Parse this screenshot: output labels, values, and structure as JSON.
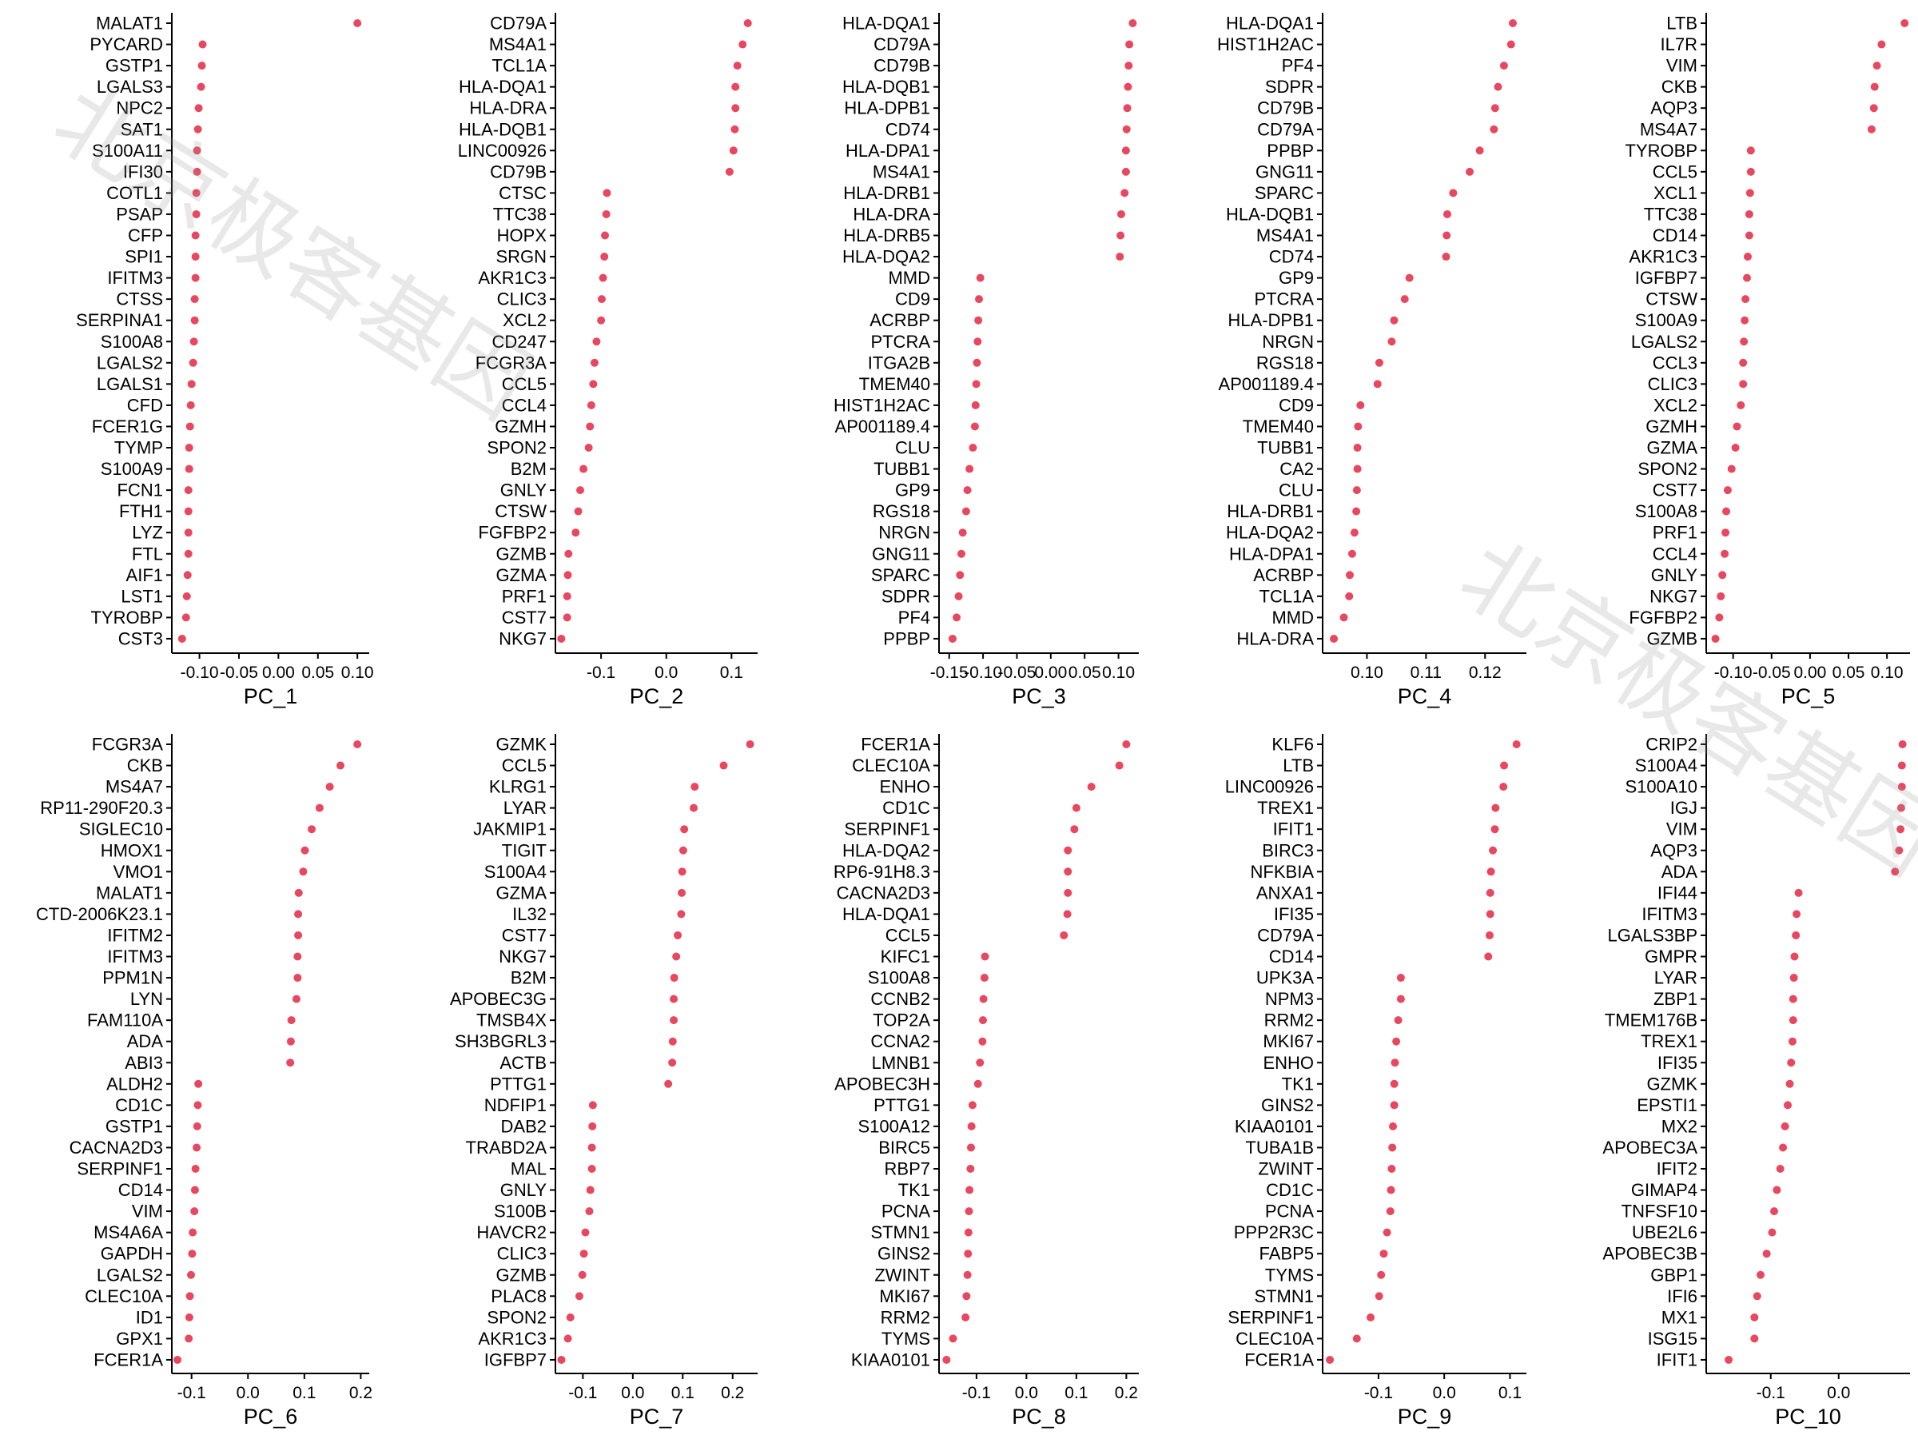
{
  "watermark": "北京极客基因",
  "colors": {
    "point": "#e8485f",
    "axis": "#000000"
  },
  "chart_data": [
    {
      "type": "scatter",
      "xlabel": "PC_1",
      "xlim": [
        -0.135,
        0.115
      ],
      "xticks": [
        -0.1,
        -0.05,
        0.0,
        0.05,
        0.1
      ],
      "xtick_labels": [
        "-0.10",
        "-0.05",
        "0.00",
        "0.05",
        "0.10"
      ],
      "genes": [
        "MALAT1",
        "PYCARD",
        "GSTP1",
        "LGALS3",
        "NPC2",
        "SAT1",
        "S100A11",
        "IFI30",
        "COTL1",
        "PSAP",
        "CFP",
        "SPI1",
        "IFITM3",
        "CTSS",
        "SERPINA1",
        "S100A8",
        "LGALS2",
        "LGALS1",
        "CFD",
        "FCER1G",
        "TYMP",
        "S100A9",
        "FCN1",
        "FTH1",
        "LYZ",
        "FTL",
        "AIF1",
        "LST1",
        "TYROBP",
        "CST3"
      ],
      "values": [
        0.1,
        -0.096,
        -0.097,
        -0.098,
        -0.101,
        -0.102,
        -0.103,
        -0.103,
        -0.104,
        -0.104,
        -0.105,
        -0.105,
        -0.105,
        -0.106,
        -0.106,
        -0.107,
        -0.108,
        -0.11,
        -0.111,
        -0.112,
        -0.113,
        -0.113,
        -0.114,
        -0.114,
        -0.114,
        -0.114,
        -0.115,
        -0.116,
        -0.117,
        -0.122
      ]
    },
    {
      "type": "scatter",
      "xlabel": "PC_2",
      "xlim": [
        -0.17,
        0.14
      ],
      "xticks": [
        -0.1,
        0.0,
        0.1
      ],
      "xtick_labels": [
        "-0.1",
        "0.0",
        "0.1"
      ],
      "genes": [
        "CD79A",
        "MS4A1",
        "TCL1A",
        "HLA-DQA1",
        "HLA-DRA",
        "HLA-DQB1",
        "LINC00926",
        "CD79B",
        "CTSC",
        "TTC38",
        "HOPX",
        "SRGN",
        "AKR1C3",
        "CLIC3",
        "XCL2",
        "CD247",
        "FCGR3A",
        "CCL5",
        "CCL4",
        "GZMH",
        "SPON2",
        "B2M",
        "GNLY",
        "CTSW",
        "FGFBP2",
        "GZMB",
        "GZMA",
        "PRF1",
        "CST7",
        "NKG7"
      ],
      "values": [
        0.125,
        0.117,
        0.109,
        0.106,
        0.106,
        0.105,
        0.103,
        0.097,
        -0.091,
        -0.092,
        -0.094,
        -0.095,
        -0.097,
        -0.099,
        -0.1,
        -0.107,
        -0.11,
        -0.112,
        -0.115,
        -0.117,
        -0.119,
        -0.127,
        -0.132,
        -0.135,
        -0.139,
        -0.15,
        -0.151,
        -0.152,
        -0.152,
        -0.161
      ]
    },
    {
      "type": "scatter",
      "xlabel": "PC_3",
      "xlim": [
        -0.165,
        0.13
      ],
      "xticks": [
        -0.15,
        -0.1,
        -0.05,
        0.0,
        0.05,
        0.1
      ],
      "xtick_labels": [
        "-0.15",
        "-0.10",
        "-0.05",
        "0.00",
        "0.05",
        "0.10"
      ],
      "genes": [
        "HLA-DQA1",
        "CD79A",
        "CD79B",
        "HLA-DQB1",
        "HLA-DPB1",
        "CD74",
        "HLA-DPA1",
        "MS4A1",
        "HLA-DRB1",
        "HLA-DRA",
        "HLA-DRB5",
        "HLA-DQA2",
        "MMD",
        "CD9",
        "ACRBP",
        "PTCRA",
        "ITGA2B",
        "TMEM40",
        "HIST1H2AC",
        "AP001189.4",
        "CLU",
        "TUBB1",
        "GP9",
        "RGS18",
        "NRGN",
        "GNG11",
        "SPARC",
        "SDPR",
        "PF4",
        "PPBP"
      ],
      "values": [
        0.121,
        0.116,
        0.115,
        0.114,
        0.113,
        0.112,
        0.111,
        0.111,
        0.109,
        0.104,
        0.103,
        0.102,
        -0.104,
        -0.106,
        -0.107,
        -0.108,
        -0.109,
        -0.11,
        -0.111,
        -0.112,
        -0.115,
        -0.12,
        -0.123,
        -0.125,
        -0.13,
        -0.132,
        -0.134,
        -0.136,
        -0.139,
        -0.145
      ]
    },
    {
      "type": "scatter",
      "xlabel": "PC_4",
      "xlim": [
        0.0925,
        0.127
      ],
      "xticks": [
        0.1,
        0.11,
        0.12
      ],
      "xtick_labels": [
        "0.10",
        "0.11",
        "0.12"
      ],
      "genes": [
        "HLA-DQA1",
        "HIST1H2AC",
        "PF4",
        "SDPR",
        "CD79B",
        "CD79A",
        "PPBP",
        "GNG11",
        "SPARC",
        "HLA-DQB1",
        "MS4A1",
        "CD74",
        "GP9",
        "PTCRA",
        "HLA-DPB1",
        "NRGN",
        "RGS18",
        "AP001189.4",
        "CD9",
        "TMEM40",
        "TUBB1",
        "CA2",
        "CLU",
        "HLA-DRB1",
        "HLA-DQA2",
        "HLA-DPA1",
        "ACRBP",
        "TCL1A",
        "MMD",
        "HLA-DRA"
      ],
      "values": [
        0.1247,
        0.1244,
        0.1232,
        0.1222,
        0.1217,
        0.1215,
        0.1191,
        0.1174,
        0.1146,
        0.1136,
        0.1135,
        0.1134,
        0.1072,
        0.1064,
        0.1046,
        0.1042,
        0.1021,
        0.1018,
        0.0989,
        0.0985,
        0.0984,
        0.0984,
        0.0983,
        0.0982,
        0.0979,
        0.0975,
        0.0971,
        0.097,
        0.0961,
        0.0944
      ]
    },
    {
      "type": "scatter",
      "xlabel": "PC_5",
      "xlim": [
        -0.135,
        0.13
      ],
      "xticks": [
        -0.1,
        -0.05,
        0.0,
        0.05,
        0.1
      ],
      "xtick_labels": [
        "-0.10",
        "-0.05",
        "0.00",
        "0.05",
        "0.10"
      ],
      "genes": [
        "LTB",
        "IL7R",
        "VIM",
        "CKB",
        "AQP3",
        "MS4A7",
        "TYROBP",
        "CCL5",
        "XCL1",
        "TTC38",
        "CD14",
        "AKR1C3",
        "IGFBP7",
        "CTSW",
        "S100A9",
        "LGALS2",
        "CCL3",
        "CLIC3",
        "XCL2",
        "GZMH",
        "GZMA",
        "SPON2",
        "CST7",
        "S100A8",
        "PRF1",
        "CCL4",
        "GNLY",
        "NKG7",
        "FGFBP2",
        "GZMB"
      ],
      "values": [
        0.123,
        0.093,
        0.087,
        0.084,
        0.083,
        0.08,
        -0.077,
        -0.077,
        -0.078,
        -0.079,
        -0.079,
        -0.081,
        -0.082,
        -0.084,
        -0.085,
        -0.086,
        -0.087,
        -0.087,
        -0.09,
        -0.095,
        -0.097,
        -0.102,
        -0.107,
        -0.109,
        -0.11,
        -0.111,
        -0.114,
        -0.116,
        -0.118,
        -0.123
      ]
    },
    {
      "type": "scatter",
      "xlabel": "PC_6",
      "xlim": [
        -0.135,
        0.215
      ],
      "xticks": [
        -0.1,
        0.0,
        0.1,
        0.2
      ],
      "xtick_labels": [
        "-0.1",
        "0.0",
        "0.1",
        "0.2"
      ],
      "genes": [
        "FCGR3A",
        "CKB",
        "MS4A7",
        "RP11-290F20.3",
        "SIGLEC10",
        "HMOX1",
        "VMO1",
        "MALAT1",
        "CTD-2006K23.1",
        "IFITM2",
        "IFITM3",
        "PPM1N",
        "LYN",
        "FAM110A",
        "ADA",
        "ABI3",
        "ALDH2",
        "CD1C",
        "GSTP1",
        "CACNA2D3",
        "SERPINF1",
        "CD14",
        "VIM",
        "MS4A6A",
        "GAPDH",
        "LGALS2",
        "CLEC10A",
        "ID1",
        "GPX1",
        "FCER1A"
      ],
      "values": [
        0.194,
        0.164,
        0.145,
        0.127,
        0.113,
        0.101,
        0.098,
        0.09,
        0.089,
        0.089,
        0.088,
        0.088,
        0.086,
        0.077,
        0.076,
        0.075,
        -0.088,
        -0.089,
        -0.09,
        -0.091,
        -0.093,
        -0.094,
        -0.095,
        -0.098,
        -0.099,
        -0.101,
        -0.103,
        -0.104,
        -0.105,
        -0.125
      ]
    },
    {
      "type": "scatter",
      "xlabel": "PC_7",
      "xlim": [
        -0.155,
        0.25
      ],
      "xticks": [
        -0.1,
        0.0,
        0.1,
        0.2
      ],
      "xtick_labels": [
        "-0.1",
        "0.0",
        "0.1",
        "0.2"
      ],
      "genes": [
        "GZMK",
        "CCL5",
        "KLRG1",
        "LYAR",
        "JAKMIP1",
        "TIGIT",
        "S100A4",
        "GZMA",
        "IL32",
        "CST7",
        "NKG7",
        "B2M",
        "APOBEC3G",
        "TMSB4X",
        "SH3BGRL3",
        "ACTB",
        "PTTG1",
        "NDFIP1",
        "DAB2",
        "TRABD2A",
        "MAL",
        "GNLY",
        "S100B",
        "HAVCR2",
        "CLIC3",
        "GZMB",
        "PLAC8",
        "SPON2",
        "AKR1C3",
        "IGFBP7"
      ],
      "values": [
        0.235,
        0.182,
        0.124,
        0.122,
        0.103,
        0.101,
        0.099,
        0.098,
        0.097,
        0.09,
        0.087,
        0.083,
        0.082,
        0.082,
        0.08,
        0.079,
        0.071,
        -0.08,
        -0.081,
        -0.082,
        -0.082,
        -0.085,
        -0.087,
        -0.095,
        -0.098,
        -0.101,
        -0.107,
        -0.125,
        -0.13,
        -0.143
      ]
    },
    {
      "type": "scatter",
      "xlabel": "PC_8",
      "xlim": [
        -0.175,
        0.225
      ],
      "xticks": [
        -0.1,
        0.0,
        0.1,
        0.2
      ],
      "xtick_labels": [
        "-0.1",
        "0.0",
        "0.1",
        "0.2"
      ],
      "genes": [
        "FCER1A",
        "CLEC10A",
        "ENHO",
        "CD1C",
        "SERPINF1",
        "HLA-DQA2",
        "RP6-91H8.3",
        "CACNA2D3",
        "HLA-DQA1",
        "CCL5",
        "KIFC1",
        "S100A8",
        "CCNB2",
        "TOP2A",
        "CCNA2",
        "LMNB1",
        "APOBEC3H",
        "PTTG1",
        "S100A12",
        "BIRC5",
        "RBP7",
        "TK1",
        "PCNA",
        "STMN1",
        "GINS2",
        "ZWINT",
        "MKI67",
        "RRM2",
        "TYMS",
        "KIAA0101"
      ],
      "values": [
        0.2,
        0.186,
        0.13,
        0.1,
        0.096,
        0.083,
        0.083,
        0.083,
        0.082,
        0.075,
        -0.083,
        -0.084,
        -0.086,
        -0.087,
        -0.088,
        -0.093,
        -0.097,
        -0.108,
        -0.11,
        -0.111,
        -0.112,
        -0.114,
        -0.115,
        -0.116,
        -0.117,
        -0.118,
        -0.12,
        -0.122,
        -0.147,
        -0.16
      ]
    },
    {
      "type": "scatter",
      "xlabel": "PC_9",
      "xlim": [
        -0.185,
        0.125
      ],
      "xticks": [
        -0.1,
        0.0,
        0.1
      ],
      "xtick_labels": [
        "-0.1",
        "0.0",
        "0.1"
      ],
      "genes": [
        "KLF6",
        "LTB",
        "LINC00926",
        "TREX1",
        "IFIT1",
        "BIRC3",
        "NFKBIA",
        "ANXA1",
        "IFI35",
        "CD79A",
        "CD14",
        "UPK3A",
        "NPM3",
        "RRM2",
        "MKI67",
        "ENHO",
        "TK1",
        "GINS2",
        "KIAA0101",
        "TUBA1B",
        "ZWINT",
        "CD1C",
        "PCNA",
        "PPP2R3C",
        "FABP5",
        "TYMS",
        "STMN1",
        "SERPINF1",
        "CLEC10A",
        "FCER1A"
      ],
      "values": [
        0.11,
        0.091,
        0.09,
        0.078,
        0.077,
        0.074,
        0.071,
        0.07,
        0.07,
        0.069,
        0.067,
        -0.066,
        -0.066,
        -0.07,
        -0.073,
        -0.075,
        -0.076,
        -0.076,
        -0.078,
        -0.079,
        -0.08,
        -0.081,
        -0.082,
        -0.087,
        -0.092,
        -0.096,
        -0.099,
        -0.112,
        -0.133,
        -0.174
      ]
    },
    {
      "type": "scatter",
      "xlabel": "PC_10",
      "xlim": [
        -0.195,
        0.105
      ],
      "xticks": [
        -0.1,
        0.0
      ],
      "xtick_labels": [
        "-0.1",
        "0.0"
      ],
      "genes": [
        "CRIP2",
        "S100A4",
        "S100A10",
        "IGJ",
        "VIM",
        "AQP3",
        "ADA",
        "IFI44",
        "IFITM3",
        "LGALS3BP",
        "GMPR",
        "LYAR",
        "ZBP1",
        "TMEM176B",
        "TREX1",
        "IFI35",
        "GZMK",
        "EPSTI1",
        "MX2",
        "APOBEC3A",
        "IFIT2",
        "GIMAP4",
        "TNFSF10",
        "UBE2L6",
        "APOBEC3B",
        "GBP1",
        "IFI6",
        "MX1",
        "ISG15",
        "IFIT1"
      ],
      "values": [
        0.094,
        0.093,
        0.093,
        0.092,
        0.091,
        0.089,
        0.083,
        -0.059,
        -0.062,
        -0.063,
        -0.065,
        -0.066,
        -0.067,
        -0.067,
        -0.068,
        -0.07,
        -0.072,
        -0.075,
        -0.079,
        -0.082,
        -0.086,
        -0.091,
        -0.095,
        -0.098,
        -0.106,
        -0.115,
        -0.12,
        -0.124,
        -0.124,
        -0.162
      ]
    }
  ]
}
